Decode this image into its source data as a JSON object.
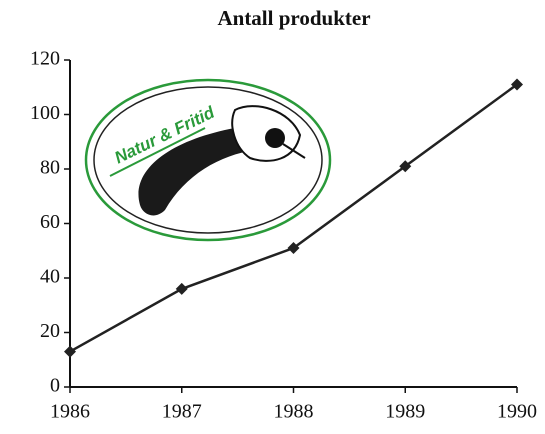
{
  "chart_data": {
    "type": "line",
    "title": "Antall produkter",
    "x": [
      1986,
      1987,
      1988,
      1989,
      1990
    ],
    "series": [
      {
        "name": "Antall produkter",
        "color": "#222222",
        "values": [
          13,
          36,
          51,
          81,
          111
        ]
      }
    ],
    "xlim": [
      1986,
      1990
    ],
    "xticks": [
      1986,
      1987,
      1988,
      1989,
      1990
    ],
    "ylim": [
      0,
      120
    ],
    "yticks": [
      0,
      20,
      40,
      60,
      80,
      100,
      120
    ],
    "annotations": [
      "Natur & Fritid"
    ]
  }
}
